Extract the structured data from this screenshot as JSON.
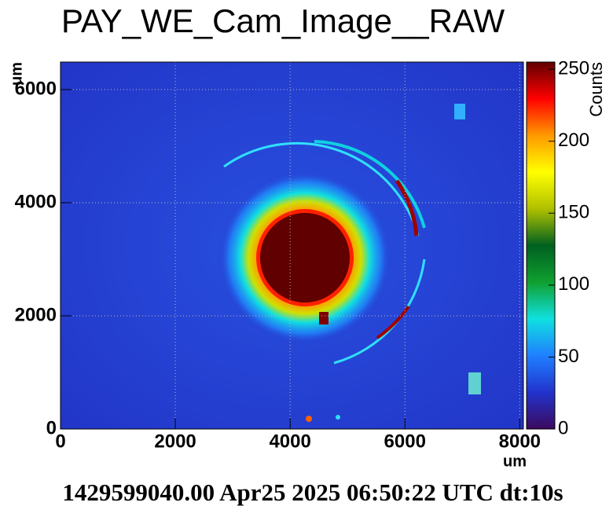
{
  "chart_data": {
    "type": "heatmap",
    "title": "PAY_WE_Cam_Image__RAW",
    "x_label": "um",
    "y_label": "um",
    "z_label": "Counts",
    "annotation": "1429599040.00 Apr25 2025 06:50:22 UTC dt:10s",
    "xlim": [
      0,
      8064
    ],
    "ylim": [
      0,
      6486
    ],
    "zlim": [
      0,
      255
    ],
    "xticks": [
      0,
      2000,
      4000,
      6000,
      8000
    ],
    "yticks": [
      0,
      2000,
      4000,
      6000
    ],
    "zticks": [
      0,
      50,
      100,
      150,
      200,
      250
    ],
    "grid": true,
    "colormap": [
      "#3b0a5e",
      "#2233cc",
      "#1f7fff",
      "#10e0e0",
      "#10a030",
      "#006020",
      "#b0c000",
      "#ffff00",
      "#ff9900",
      "#ff0000",
      "#600000"
    ]
  }
}
